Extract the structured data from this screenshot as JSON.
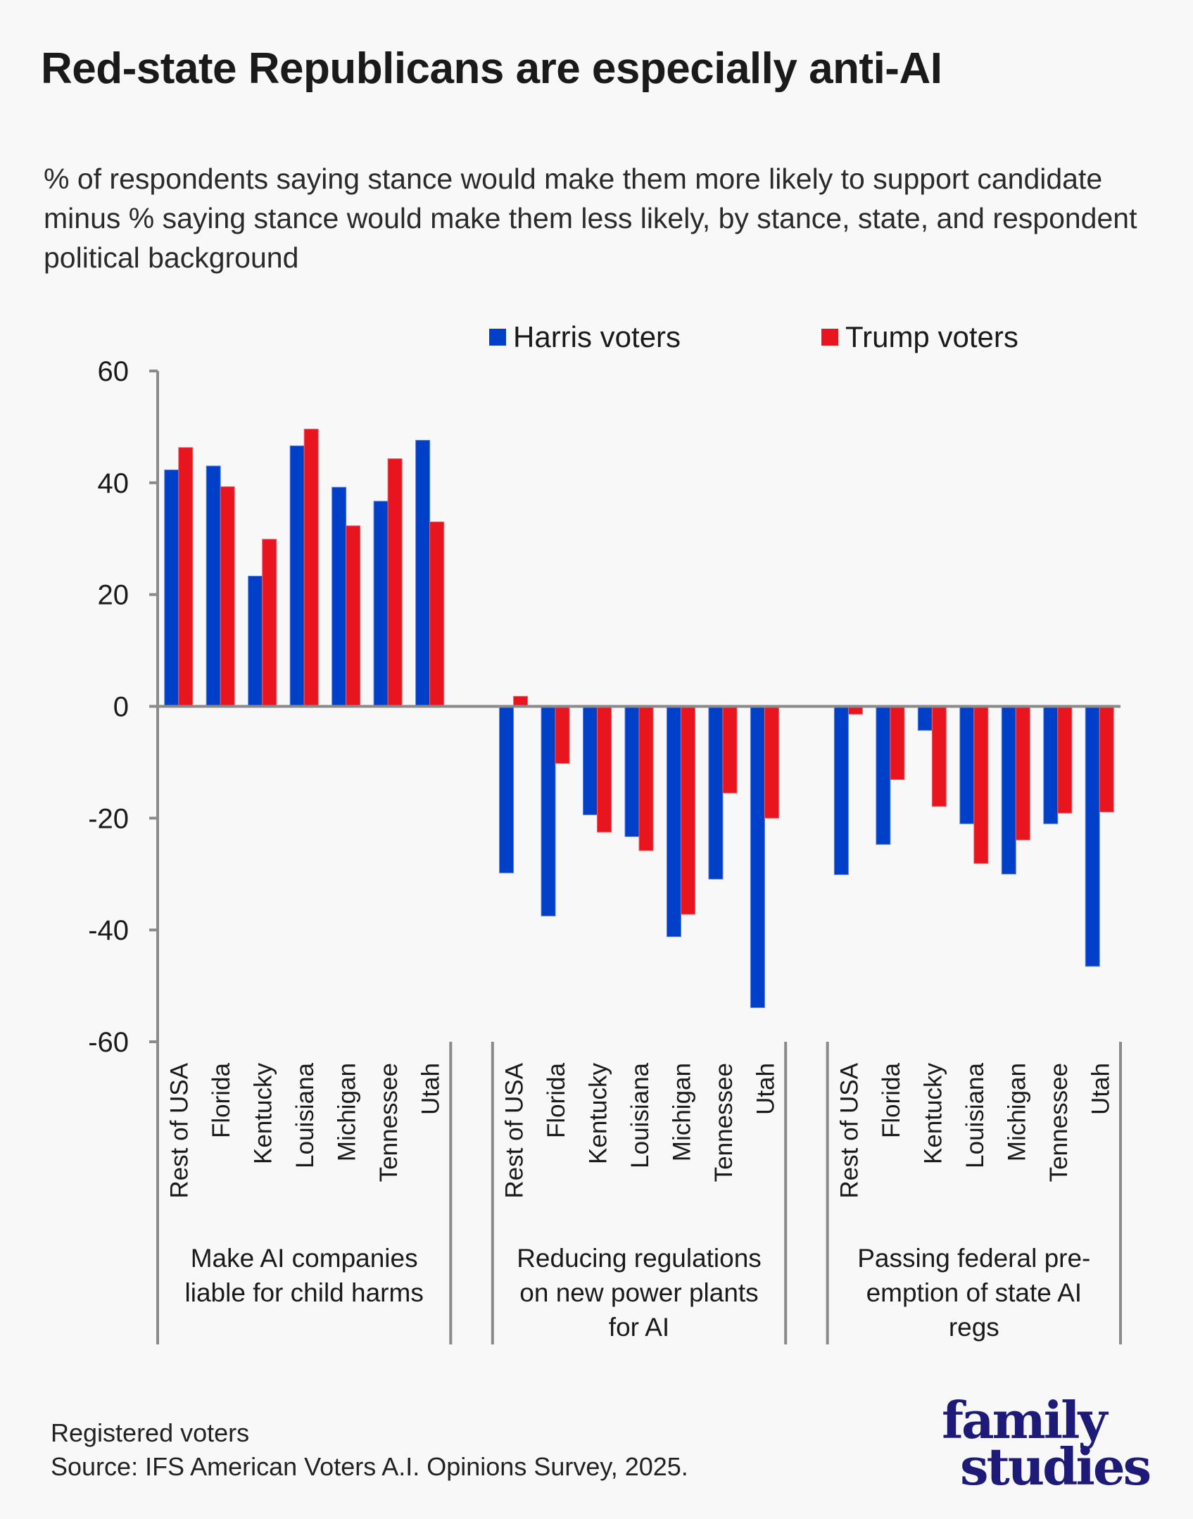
{
  "title": "Red-state Republicans are especially anti-AI",
  "subtitle": "% of respondents saying stance would make them more likely to support candidate minus % saying stance would make them less likely, by stance, state, and respondent political background",
  "footer": {
    "note": "Registered voters",
    "source": "Source: IFS American Voters A.I. Opinions Survey, 2025."
  },
  "logo": {
    "line1": "family",
    "line2": "studies"
  },
  "chart_data": {
    "type": "bar",
    "ylim": [
      -60,
      60
    ],
    "yticks": [
      "60",
      "40",
      "20",
      "0",
      "-20",
      "-40",
      "-60"
    ],
    "ytick_values": [
      60,
      40,
      20,
      0,
      -20,
      -40,
      -60
    ],
    "grid": false,
    "legend": "top-right",
    "colors": {
      "Harris voters": "#0040c8",
      "Trump voters": "#e8141e"
    },
    "groups": [
      {
        "label_lines": [
          "Make AI companies",
          "liable for child harms"
        ],
        "categories": [
          "Rest of USA",
          "Florida",
          "Kentucky",
          "Louisiana",
          "Michigan",
          "Tennessee",
          "Utah"
        ],
        "series": [
          {
            "name": "Harris voters",
            "values": [
              42.3,
              43.0,
              23.3,
              46.6,
              39.2,
              36.7,
              47.6
            ]
          },
          {
            "name": "Trump voters",
            "values": [
              46.3,
              39.3,
              29.9,
              49.6,
              32.3,
              44.3,
              33.0
            ]
          }
        ]
      },
      {
        "label_lines": [
          "Reducing regulations",
          "on new power plants",
          "for AI"
        ],
        "categories": [
          "Rest of USA",
          "Florida",
          "Kentucky",
          "Louisiana",
          "Michigan",
          "Tennessee",
          "Utah"
        ],
        "series": [
          {
            "name": "Harris voters",
            "values": [
              -29.8,
              -37.5,
              -19.4,
              -23.3,
              -41.2,
              -30.9,
              -53.9
            ]
          },
          {
            "name": "Trump voters",
            "values": [
              1.8,
              -10.2,
              -22.5,
              -25.8,
              -37.2,
              -15.5,
              -20.0
            ]
          }
        ]
      },
      {
        "label_lines": [
          "Passing federal pre-",
          "emption of state AI",
          "regs"
        ],
        "categories": [
          "Rest of USA",
          "Florida",
          "Kentucky",
          "Louisiana",
          "Michigan",
          "Tennessee",
          "Utah"
        ],
        "series": [
          {
            "name": "Harris voters",
            "values": [
              -30.1,
              -24.7,
              -4.3,
              -21.0,
              -30.0,
              -21.0,
              -46.5
            ]
          },
          {
            "name": "Trump voters",
            "values": [
              -1.4,
              -13.1,
              -17.9,
              -28.1,
              -23.9,
              -19.1,
              -18.9
            ]
          }
        ]
      }
    ]
  }
}
